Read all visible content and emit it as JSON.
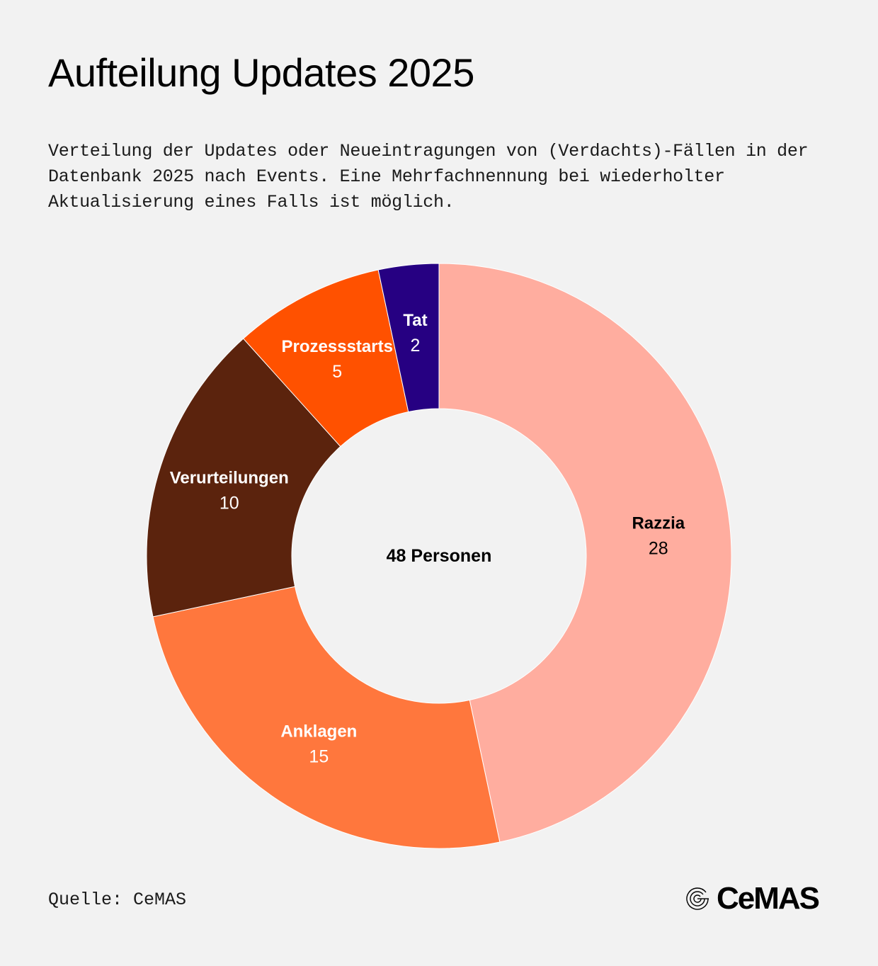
{
  "header": {
    "title": "Aufteilung Updates 2025",
    "subtitle": "Verteilung der Updates oder Neueintragungen von (Verdachts)-Fällen in der Datenbank 2025 nach Events. Eine Mehrfachnennung bei wiederholter Aktualisierung eines Falls ist möglich."
  },
  "footer": {
    "source": "Quelle: CeMAS",
    "logo_text": "CeMAS",
    "logo_icon": "cemas-spiral-icon"
  },
  "chart_data": {
    "type": "pie",
    "variant": "donut",
    "title": "Aufteilung Updates 2025",
    "center_label": "48 Personen",
    "categories": [
      "Razzia",
      "Anklagen",
      "Verurteilungen",
      "Prozessstarts",
      "Tat"
    ],
    "values": [
      28,
      15,
      10,
      5,
      2
    ],
    "colors": [
      "#ffad9f",
      "#ff773d",
      "#5b230d",
      "#ff5100",
      "#260082"
    ],
    "label_colors": [
      "#000000",
      "#ffffff",
      "#ffffff",
      "#ffffff",
      "#ffffff"
    ],
    "start_angle_deg": 0,
    "direction": "clockwise",
    "legend": "none (inline labels)"
  }
}
